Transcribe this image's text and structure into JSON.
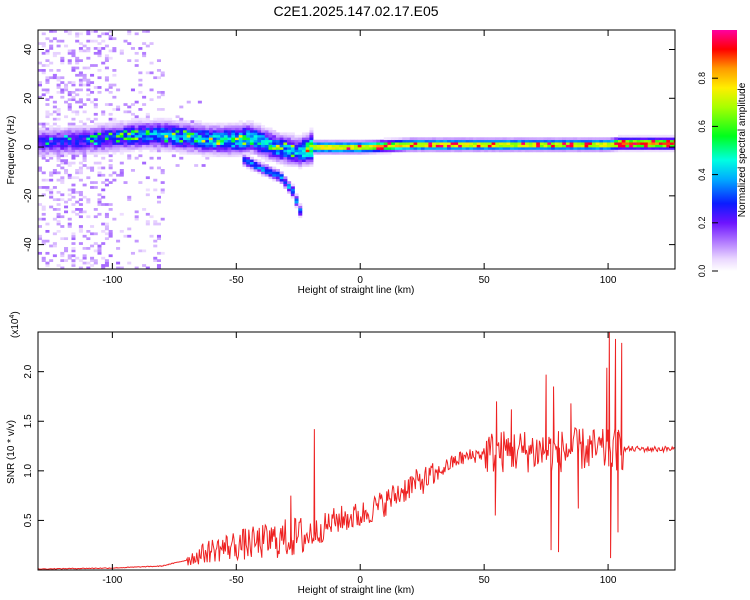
{
  "title": "C2E1.2025.147.02.17.E05",
  "colors": {
    "snr_line": "#ee2222",
    "background": "#ffffff",
    "axis": "#000000"
  },
  "chart_data": [
    {
      "type": "heatmap",
      "xlabel": "Height of straight line (km)",
      "ylabel": "Frequency (Hz)",
      "xlim": [
        -130,
        127
      ],
      "ylim": [
        -50,
        48
      ],
      "xticks": [
        -100,
        -50,
        0,
        50,
        100
      ],
      "yticks": [
        -40,
        -20,
        0,
        20,
        40
      ],
      "grid": false,
      "colorbar": {
        "label": "Normalized spectral amplitude",
        "range": [
          0,
          1
        ],
        "ticks": [
          0.0,
          0.2,
          0.4,
          0.6,
          0.8
        ],
        "tick_labels": [
          "0.0",
          "0.2",
          "0.4",
          "0.6",
          "0.8"
        ],
        "colormap": "rainbow (white-violet-blue-cyan-green-yellow-orange-red-magenta)"
      },
      "ridge": {
        "description": "spectral peak track frequency (Hz) vs height (km)",
        "x": [
          -130,
          -110,
          -90,
          -80,
          -70,
          -60,
          -50,
          -45,
          -40,
          -35,
          -30,
          -25,
          -20,
          0,
          20,
          50,
          75,
          100,
          104,
          127
        ],
        "freq": [
          2,
          3,
          5,
          5,
          4,
          3,
          3,
          4,
          2,
          0,
          -1,
          -2,
          0,
          0,
          1,
          1,
          1,
          1,
          1.5,
          1.5
        ],
        "peak_amplitude": [
          0.3,
          0.35,
          0.45,
          0.5,
          0.5,
          0.55,
          0.6,
          0.6,
          0.55,
          0.55,
          0.5,
          0.5,
          0.85,
          0.85,
          0.85,
          0.85,
          0.8,
          0.85,
          0.95,
          0.95
        ]
      },
      "branch": {
        "description": "descending secondary branch",
        "x": [
          -48,
          -40,
          -33,
          -28,
          -25
        ],
        "freq": [
          -5,
          -9,
          -12,
          -18,
          -26
        ]
      }
    },
    {
      "type": "line",
      "xlabel": "Height of straight line (km)",
      "ylabel": "SNR (10 * v/v)",
      "y_multiplier_label": "(x10",
      "y_multiplier_exponent": "4",
      "y_multiplier_close": ")",
      "xlim": [
        -130,
        127
      ],
      "ylim": [
        0,
        2.4
      ],
      "xticks": [
        -100,
        -50,
        0,
        50,
        100
      ],
      "yticks": [
        0.5,
        1.0,
        1.5,
        2.0
      ],
      "ytick_labels": [
        "0.5",
        "1.0",
        "1.5",
        "2.0"
      ],
      "grid": false,
      "series": [
        {
          "x": [
            -130,
            -100,
            -80,
            -70,
            -60,
            -50,
            -40,
            -30,
            -20,
            -10,
            0,
            10,
            20,
            30,
            35,
            40,
            50,
            60,
            70,
            80,
            90,
            100,
            105,
            127
          ],
          "y": [
            0.01,
            0.02,
            0.04,
            0.1,
            0.2,
            0.25,
            0.28,
            0.32,
            0.35,
            0.5,
            0.55,
            0.68,
            0.85,
            0.95,
            1.05,
            1.12,
            1.18,
            1.2,
            1.2,
            1.2,
            1.22,
            1.2,
            1.22,
            1.22
          ],
          "spikes": [
            {
              "x": -18.5,
              "y": 1.42
            },
            {
              "x": -28,
              "y": 0.75
            },
            {
              "x": 55,
              "y": 1.7
            },
            {
              "x": 61,
              "y": 1.62
            },
            {
              "x": 54.5,
              "y": 0.55
            },
            {
              "x": 75,
              "y": 1.97
            },
            {
              "x": 77,
              "y": 0.2
            },
            {
              "x": 78,
              "y": 1.85
            },
            {
              "x": 80,
              "y": 0.18
            },
            {
              "x": 85,
              "y": 1.68
            },
            {
              "x": 88,
              "y": 0.62
            },
            {
              "x": 99.5,
              "y": 2.04
            },
            {
              "x": 100.5,
              "y": 2.41
            },
            {
              "x": 101,
              "y": 0.12
            },
            {
              "x": 103,
              "y": 2.33
            },
            {
              "x": 104,
              "y": 0.38
            },
            {
              "x": 105.5,
              "y": 2.29
            }
          ]
        }
      ]
    }
  ]
}
